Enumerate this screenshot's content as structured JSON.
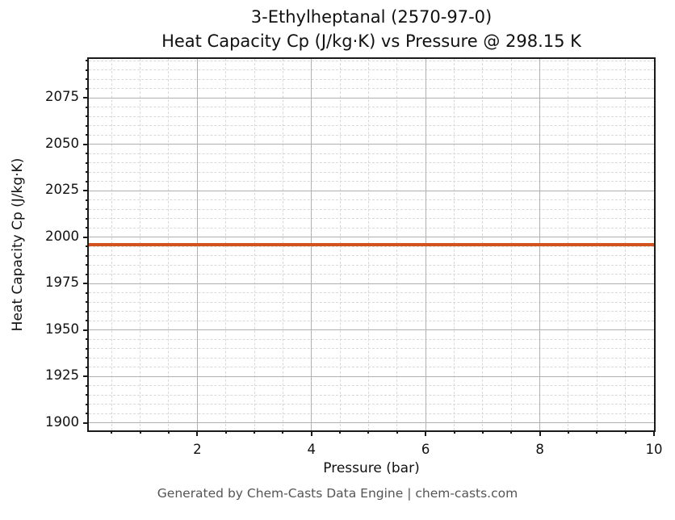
{
  "title": {
    "line1": "3-Ethylheptanal (2570-97-0)",
    "line2": "Heat Capacity Cp (J/kg·K) vs Pressure @ 298.15 K"
  },
  "footer": {
    "text": "Generated by Chem-Casts Data Engine | chem-casts.com"
  },
  "colors": {
    "line": "#d2531e",
    "major_grid": "#b0b0b0",
    "minor_grid": "#d9d9d9",
    "spine": "#1a1a1a",
    "tick": "#1a1a1a",
    "text": "#111111",
    "footer_text": "#555555",
    "background": "#ffffff"
  },
  "chart_data": {
    "type": "line",
    "title": "3-Ethylheptanal (2570-97-0)",
    "subtitle": "Heat Capacity Cp (J/kg·K) vs Pressure @ 298.15 K",
    "xlabel": "Pressure (bar)",
    "ylabel": "Heat Capacity Cp (J/kg·K)",
    "xlim": [
      0.1,
      10
    ],
    "ylim": [
      1896,
      2096
    ],
    "x_major_ticks": [
      2,
      4,
      6,
      8,
      10
    ],
    "x_minor_step": 0.5,
    "y_major_ticks": [
      1900,
      1925,
      1950,
      1975,
      2000,
      2025,
      2050,
      2075
    ],
    "y_minor_step": 5,
    "grid": "major solid gray + minor dashed light gray",
    "legend": "none",
    "series": [
      {
        "name": "Heat Capacity Cp",
        "x": [
          0.1,
          2,
          4,
          6,
          8,
          10
        ],
        "y": [
          1996,
          1996,
          1996,
          1996,
          1996,
          1996
        ],
        "color": "#d2531e",
        "line_width": 3.5,
        "note": "constant Cp ≈ 1996 J/kg·K across 0.1–10 bar at 298.15 K"
      }
    ]
  }
}
